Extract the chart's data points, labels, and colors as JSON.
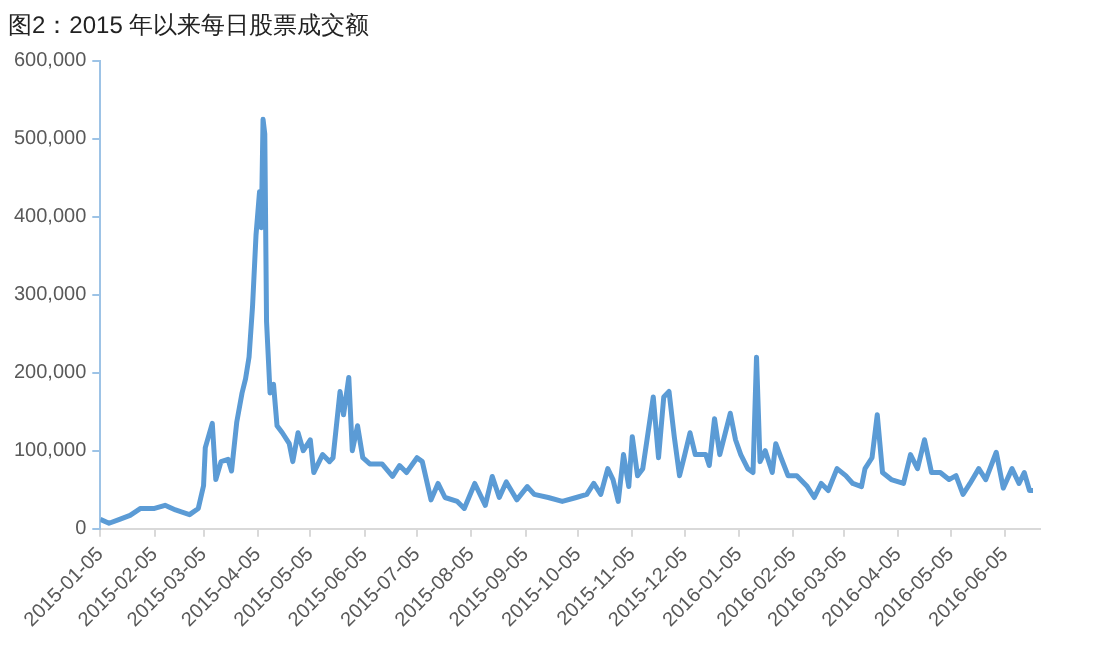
{
  "chart_data": {
    "type": "line",
    "title": "图2：2015 年以来每日股票成交额",
    "series": [
      {
        "color": "#5b9bd5",
        "x": [
          "2015-01-05",
          "2015-01-10",
          "2015-01-16",
          "2015-01-22",
          "2015-01-28",
          "2015-02-05",
          "2015-02-11",
          "2015-02-17",
          "2015-02-25",
          "2015-03-02",
          "2015-03-05",
          "2015-03-06",
          "2015-03-10",
          "2015-03-12",
          "2015-03-15",
          "2015-03-19",
          "2015-03-21",
          "2015-03-24",
          "2015-03-27",
          "2015-03-29",
          "2015-03-31",
          "2015-04-02",
          "2015-04-04",
          "2015-04-06",
          "2015-04-07",
          "2015-04-08",
          "2015-04-09",
          "2015-04-10",
          "2015-04-12",
          "2015-04-14",
          "2015-04-16",
          "2015-04-19",
          "2015-04-23",
          "2015-04-25",
          "2015-04-28",
          "2015-05-01",
          "2015-05-05",
          "2015-05-07",
          "2015-05-12",
          "2015-05-16",
          "2015-05-18",
          "2015-05-22",
          "2015-05-24",
          "2015-05-27",
          "2015-05-29",
          "2015-06-01",
          "2015-06-04",
          "2015-06-08",
          "2015-06-15",
          "2015-06-21",
          "2015-06-25",
          "2015-06-29",
          "2015-07-05",
          "2015-07-08",
          "2015-07-13",
          "2015-07-17",
          "2015-07-21",
          "2015-07-28",
          "2015-08-01",
          "2015-08-07",
          "2015-08-13",
          "2015-08-17",
          "2015-08-21",
          "2015-08-25",
          "2015-08-31",
          "2015-09-06",
          "2015-09-10",
          "2015-09-18",
          "2015-09-26",
          "2015-10-04",
          "2015-10-10",
          "2015-10-14",
          "2015-10-18",
          "2015-10-22",
          "2015-10-25",
          "2015-10-28",
          "2015-10-31",
          "2015-11-03",
          "2015-11-05",
          "2015-11-08",
          "2015-11-11",
          "2015-11-14",
          "2015-11-17",
          "2015-11-20",
          "2015-11-23",
          "2015-11-26",
          "2015-11-29",
          "2015-12-02",
          "2015-12-05",
          "2015-12-08",
          "2015-12-11",
          "2015-12-17",
          "2015-12-19",
          "2015-12-22",
          "2015-12-25",
          "2015-12-31",
          "2016-01-03",
          "2016-01-06",
          "2016-01-10",
          "2016-01-13",
          "2016-01-15",
          "2016-01-17",
          "2016-01-20",
          "2016-01-24",
          "2016-01-26",
          "2016-01-29",
          "2016-02-02",
          "2016-02-07",
          "2016-02-13",
          "2016-02-17",
          "2016-02-21",
          "2016-02-25",
          "2016-03-01",
          "2016-03-06",
          "2016-03-10",
          "2016-03-15",
          "2016-03-17",
          "2016-03-21",
          "2016-03-24",
          "2016-03-27",
          "2016-04-01",
          "2016-04-08",
          "2016-04-12",
          "2016-04-16",
          "2016-04-20",
          "2016-04-24",
          "2016-04-29",
          "2016-05-04",
          "2016-05-08",
          "2016-05-12",
          "2016-05-16",
          "2016-05-21",
          "2016-05-25",
          "2016-05-31",
          "2016-06-04",
          "2016-06-09",
          "2016-06-13",
          "2016-06-16",
          "2016-06-19",
          "2016-06-21"
        ],
        "values": [
          12000,
          7000,
          12000,
          17000,
          26000,
          26000,
          30000,
          24000,
          18000,
          26000,
          55000,
          104000,
          135000,
          63000,
          86000,
          89000,
          74000,
          137000,
          174000,
          192000,
          220000,
          285000,
          377000,
          432000,
          386000,
          525000,
          506000,
          266000,
          174000,
          185000,
          132000,
          123000,
          109000,
          86000,
          123000,
          100000,
          114000,
          72000,
          95000,
          86000,
          91000,
          176000,
          146000,
          194000,
          100000,
          132000,
          91000,
          83000,
          83000,
          67000,
          81000,
          72000,
          91000,
          86000,
          37000,
          58000,
          40000,
          35000,
          26000,
          58000,
          30000,
          67000,
          40000,
          60000,
          37000,
          54000,
          44000,
          40000,
          35000,
          40000,
          44000,
          58000,
          44000,
          77000,
          63000,
          35000,
          95000,
          54000,
          118000,
          68000,
          77000,
          123000,
          169000,
          91000,
          169000,
          176000,
          118000,
          68000,
          95000,
          123000,
          95000,
          95000,
          81000,
          141000,
          95000,
          148000,
          114000,
          95000,
          77000,
          72000,
          220000,
          86000,
          100000,
          72000,
          109000,
          91000,
          68000,
          68000,
          54000,
          40000,
          58000,
          49000,
          77000,
          68000,
          58000,
          54000,
          77000,
          91000,
          146000,
          72000,
          63000,
          58000,
          95000,
          77000,
          114000,
          72000,
          72000,
          63000,
          68000,
          44000,
          58000,
          77000,
          63000,
          98000,
          52000,
          77000,
          58000,
          72000,
          49000,
          49000
        ]
      }
    ],
    "xlim": [
      "2015-01-05",
      "2016-06-25"
    ],
    "xticks": [
      "2015-01-05",
      "2015-02-05",
      "2015-03-05",
      "2015-04-05",
      "2015-05-05",
      "2015-06-05",
      "2015-07-05",
      "2015-08-05",
      "2015-09-05",
      "2015-10-05",
      "2015-11-05",
      "2015-12-05",
      "2016-01-05",
      "2016-02-05",
      "2016-03-05",
      "2016-04-05",
      "2016-05-05",
      "2016-06-05"
    ],
    "ylim": [
      0,
      600000
    ],
    "yticks": [
      {
        "value": 0,
        "label": "0"
      },
      {
        "value": 100000,
        "label": "100,000"
      },
      {
        "value": 200000,
        "label": "200,000"
      },
      {
        "value": 300000,
        "label": "300,000"
      },
      {
        "value": 400000,
        "label": "400,000"
      },
      {
        "value": 500000,
        "label": "500,000"
      },
      {
        "value": 600000,
        "label": "600,000"
      }
    ],
    "grid": false,
    "legend": false,
    "marker": "none",
    "line_style": "solid"
  }
}
